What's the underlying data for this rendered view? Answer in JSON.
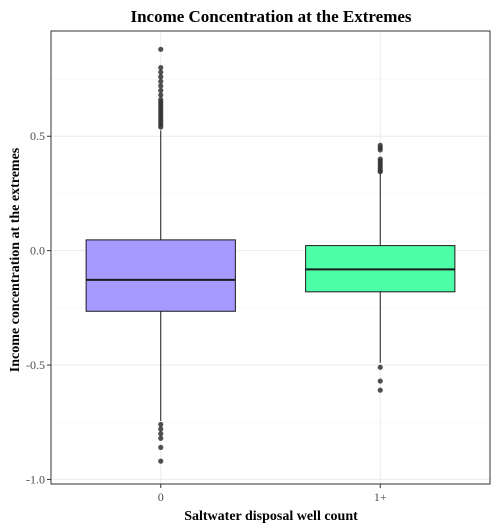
{
  "chart_data": {
    "type": "boxplot",
    "title": "Income Concentration at the Extremes",
    "xlabel": "Saltwater disposal well count",
    "ylabel": "Income concentration at the extremes",
    "categories": [
      "0",
      "1+"
    ],
    "ylim": [
      -1.02,
      0.96
    ],
    "yticks": [
      -1.0,
      -0.5,
      0.0,
      0.5
    ],
    "ytick_labels": [
      "-1.0",
      "-0.5",
      "0.0",
      "0.5"
    ],
    "grid": true,
    "boxes": [
      {
        "category": "0",
        "color": "#a699ff",
        "q1": -0.265,
        "median": -0.128,
        "q3": 0.047,
        "whisker_low": -0.745,
        "whisker_high": 0.525,
        "outliers": [
          0.88,
          0.8,
          0.78,
          0.76,
          0.74,
          0.72,
          0.7,
          0.68,
          0.66,
          0.65,
          0.64,
          0.63,
          0.62,
          0.61,
          0.6,
          0.59,
          0.58,
          0.57,
          0.56,
          0.55,
          0.54,
          -0.76,
          -0.78,
          -0.8,
          -0.82,
          -0.86,
          -0.92
        ]
      },
      {
        "category": "1+",
        "color": "#4dffa6",
        "q1": -0.18,
        "median": -0.082,
        "q3": 0.022,
        "whisker_low": -0.49,
        "whisker_high": 0.34,
        "outliers": [
          0.46,
          0.45,
          0.44,
          0.4,
          0.39,
          0.38,
          0.37,
          0.36,
          0.35,
          0.345,
          -0.51,
          -0.57,
          -0.61
        ]
      }
    ]
  }
}
